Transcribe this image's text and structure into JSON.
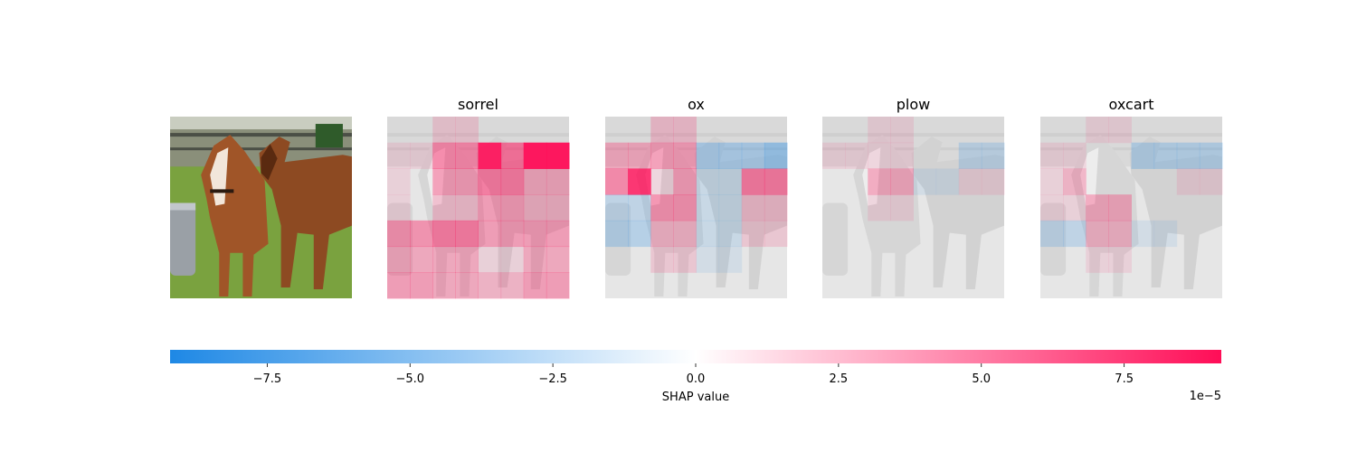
{
  "chart_data": {
    "type": "heatmap",
    "description_panels": [
      "sorrel",
      "ox",
      "plow",
      "oxcart"
    ],
    "panels": [
      {
        "title": "sorrel",
        "grid": [
          [
            0.0,
            0.0,
            0.1,
            0.1,
            0.0,
            0.0,
            0.0,
            0.0
          ],
          [
            0.05,
            0.05,
            0.4,
            0.4,
            0.9,
            0.5,
            1.0,
            1.0
          ],
          [
            0.05,
            0.0,
            0.3,
            0.3,
            0.45,
            0.45,
            0.25,
            0.25
          ],
          [
            0.05,
            0.0,
            0.15,
            0.15,
            0.3,
            0.3,
            0.2,
            0.2
          ],
          [
            0.35,
            0.35,
            0.45,
            0.45,
            0.3,
            0.3,
            0.3,
            0.3
          ],
          [
            0.25,
            0.25,
            0.25,
            0.25,
            0.05,
            0.05,
            0.25,
            0.25
          ],
          [
            0.3,
            0.3,
            0.25,
            0.25,
            0.2,
            0.2,
            0.3,
            0.3
          ]
        ]
      },
      {
        "title": "ox",
        "grid": [
          [
            0.0,
            0.0,
            0.15,
            0.15,
            0.0,
            0.0,
            0.0,
            0.0
          ],
          [
            0.25,
            0.25,
            0.3,
            0.3,
            -0.25,
            -0.25,
            -0.25,
            -0.35
          ],
          [
            0.4,
            0.8,
            0.05,
            0.3,
            -0.1,
            -0.1,
            0.45,
            0.45
          ],
          [
            -0.15,
            -0.15,
            0.35,
            0.35,
            -0.1,
            -0.1,
            0.15,
            0.15
          ],
          [
            -0.2,
            -0.2,
            0.2,
            0.2,
            -0.1,
            -0.1,
            0.1,
            0.1
          ],
          [
            0.0,
            0.0,
            0.1,
            0.1,
            -0.05,
            -0.05,
            0.0,
            0.0
          ],
          [
            0.0,
            0.0,
            0.0,
            0.0,
            0.0,
            0.0,
            0.0,
            0.0
          ]
        ]
      },
      {
        "title": "plow",
        "grid": [
          [
            0.0,
            0.0,
            0.05,
            0.05,
            0.0,
            0.0,
            0.0,
            0.0
          ],
          [
            0.05,
            0.05,
            0.05,
            0.05,
            0.0,
            0.0,
            -0.15,
            -0.15
          ],
          [
            0.0,
            0.0,
            0.25,
            0.25,
            -0.05,
            -0.05,
            0.05,
            0.05
          ],
          [
            0.0,
            0.0,
            0.05,
            0.05,
            0.0,
            0.0,
            0.0,
            0.0
          ],
          [
            0.0,
            0.0,
            0.0,
            0.0,
            0.0,
            0.0,
            0.0,
            0.0
          ],
          [
            0.0,
            0.0,
            0.0,
            0.0,
            0.0,
            0.0,
            0.0,
            0.0
          ],
          [
            0.0,
            0.0,
            0.0,
            0.0,
            0.0,
            0.0,
            0.0,
            0.0
          ]
        ]
      },
      {
        "title": "oxcart",
        "grid": [
          [
            0.0,
            0.0,
            0.05,
            0.05,
            0.0,
            0.0,
            0.0,
            0.0
          ],
          [
            0.05,
            0.05,
            0.0,
            0.0,
            -0.2,
            -0.2,
            -0.2,
            -0.2
          ],
          [
            0.05,
            0.2,
            0.0,
            0.0,
            0.0,
            0.0,
            0.05,
            0.05
          ],
          [
            0.05,
            0.05,
            0.25,
            0.25,
            0.0,
            0.0,
            0.0,
            0.0
          ],
          [
            -0.15,
            -0.15,
            0.2,
            0.2,
            -0.05,
            -0.05,
            0.0,
            0.0
          ],
          [
            0.0,
            0.0,
            0.05,
            0.05,
            0.0,
            0.0,
            0.0,
            0.0
          ],
          [
            0.0,
            0.0,
            0.0,
            0.0,
            0.0,
            0.0,
            0.0,
            0.0
          ]
        ]
      }
    ],
    "colorbar": {
      "label": "SHAP value",
      "offset_text": "1e−5",
      "range": [
        -9.2,
        9.2
      ],
      "ticks": [
        -7.5,
        -5.0,
        -2.5,
        0.0,
        2.5,
        5.0,
        7.5
      ],
      "tick_labels": [
        "−7.5",
        "−5.0",
        "−2.5",
        "0.0",
        "2.5",
        "5.0",
        "7.5"
      ],
      "scale_factor": 1e-05,
      "negative_color": "#1e88e5",
      "positive_color": "#ff0d57",
      "neutral_color": "#ffffff"
    }
  },
  "colors": {
    "grass": "#6f9a3a",
    "horse_dark": "#6b3315",
    "horse_light": "#9a5128",
    "background_grey": "#bdbdbd"
  }
}
